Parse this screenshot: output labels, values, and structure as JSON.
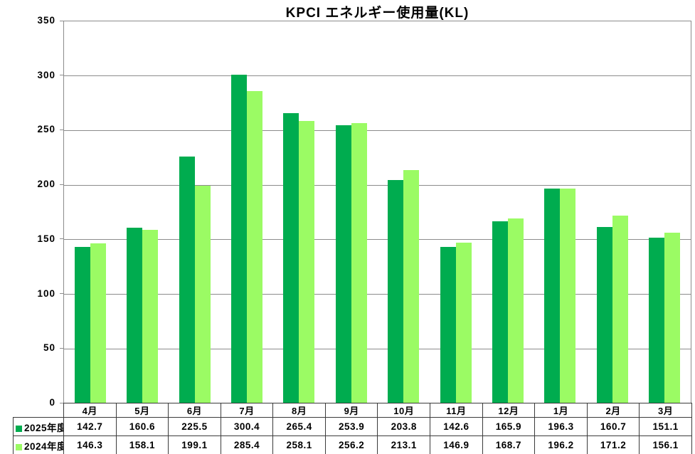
{
  "title": "KPCI エネルギー使用量(KL)",
  "chart_data": {
    "type": "bar",
    "title": "KPCI エネルギー使用量(KL)",
    "categories": [
      "4月",
      "5月",
      "6月",
      "7月",
      "8月",
      "9月",
      "10月",
      "11月",
      "12月",
      "1月",
      "2月",
      "3月"
    ],
    "series": [
      {
        "name": "2025年度",
        "color": "#00AC4F",
        "values": [
          142.7,
          160.6,
          225.5,
          300.4,
          265.4,
          253.9,
          203.8,
          142.6,
          165.9,
          196.3,
          160.7,
          151.1
        ]
      },
      {
        "name": "2024年度",
        "color": "#9BFB64",
        "values": [
          146.3,
          158.1,
          199.1,
          285.4,
          258.1,
          256.2,
          213.1,
          146.9,
          168.7,
          196.2,
          171.2,
          156.1
        ]
      }
    ],
    "xlabel": "",
    "ylabel": "",
    "ylim": [
      0,
      350
    ],
    "yticks": [
      0,
      50,
      100,
      150,
      200,
      250,
      300,
      350
    ],
    "grid": true,
    "legend_position": "data-table-row-labels",
    "value_decimals": 1
  },
  "colors": {
    "series_2025": "#00AC4F",
    "series_2024": "#9BFB64",
    "gridline": "#8C8C8C",
    "table_border": "#3B3B3B",
    "text": "#000000",
    "background": "#FFFFFF"
  }
}
